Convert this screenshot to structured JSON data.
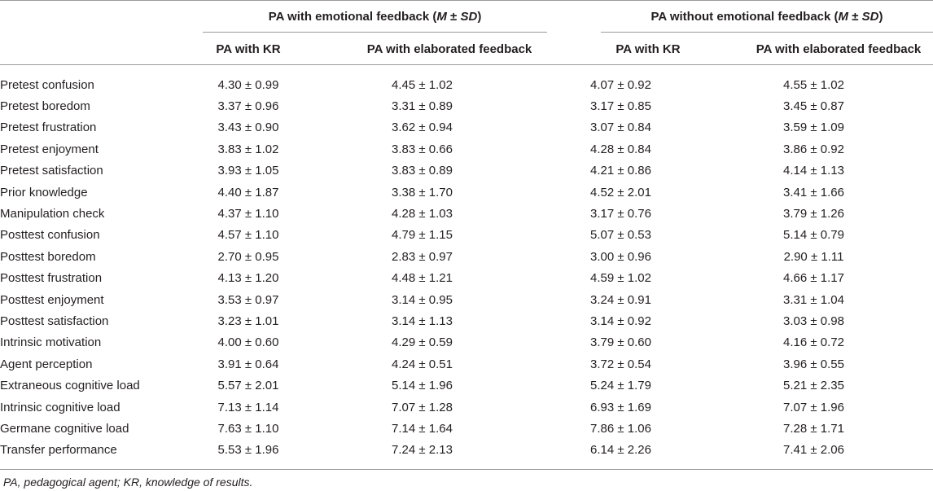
{
  "header": {
    "group1": {
      "pre": "PA with emotional feedback (",
      "em": "M",
      "mid": " ± ",
      "em2": "SD",
      "post": ")"
    },
    "group2": {
      "pre": "PA without emotional feedback (",
      "em": "M",
      "mid": " ± ",
      "em2": "SD",
      "post": ")"
    },
    "columns": [
      "PA with KR",
      "PA with elaborated feedback",
      "PA with KR",
      "PA with elaborated feedback"
    ]
  },
  "rows": [
    {
      "label": "Pretest confusion",
      "v": [
        "4.30 ± 0.99",
        "4.45 ± 1.02",
        "4.07 ± 0.92",
        "4.55 ± 1.02"
      ]
    },
    {
      "label": "Pretest boredom",
      "v": [
        "3.37 ± 0.96",
        "3.31 ± 0.89",
        "3.17 ± 0.85",
        "3.45 ± 0.87"
      ]
    },
    {
      "label": "Pretest frustration",
      "v": [
        "3.43 ± 0.90",
        "3.62 ± 0.94",
        "3.07 ± 0.84",
        "3.59 ± 1.09"
      ]
    },
    {
      "label": "Pretest enjoyment",
      "v": [
        "3.83 ± 1.02",
        "3.83 ± 0.66",
        "4.28 ± 0.84",
        "3.86 ± 0.92"
      ]
    },
    {
      "label": "Pretest satisfaction",
      "v": [
        "3.93 ± 1.05",
        "3.83 ± 0.89",
        "4.21 ± 0.86",
        "4.14 ± 1.13"
      ]
    },
    {
      "label": "Prior knowledge",
      "v": [
        "4.40 ± 1.87",
        "3.38 ± 1.70",
        "4.52 ± 2.01",
        "3.41 ± 1.66"
      ]
    },
    {
      "label": "Manipulation check",
      "v": [
        "4.37 ± 1.10",
        "4.28 ± 1.03",
        "3.17 ± 0.76",
        "3.79 ± 1.26"
      ]
    },
    {
      "label": "Posttest confusion",
      "v": [
        "4.57 ± 1.10",
        "4.79 ± 1.15",
        "5.07 ± 0.53",
        "5.14 ± 0.79"
      ]
    },
    {
      "label": "Posttest boredom",
      "v": [
        "2.70 ± 0.95",
        "2.83 ± 0.97",
        "3.00 ± 0.96",
        "2.90 ± 1.11"
      ]
    },
    {
      "label": "Posttest frustration",
      "v": [
        "4.13 ± 1.20",
        "4.48 ± 1.21",
        "4.59 ± 1.02",
        "4.66 ± 1.17"
      ]
    },
    {
      "label": "Posttest enjoyment",
      "v": [
        "3.53 ± 0.97",
        "3.14 ± 0.95",
        "3.24 ± 0.91",
        "3.31 ± 1.04"
      ]
    },
    {
      "label": "Posttest satisfaction",
      "v": [
        "3.23 ± 1.01",
        "3.14 ± 1.13",
        "3.14 ± 0.92",
        "3.03 ± 0.98"
      ]
    },
    {
      "label": "Intrinsic motivation",
      "v": [
        "4.00 ± 0.60",
        "4.29 ± 0.59",
        "3.79 ± 0.60",
        "4.16 ± 0.72"
      ]
    },
    {
      "label": "Agent perception",
      "v": [
        "3.91 ± 0.64",
        "4.24 ± 0.51",
        "3.72 ± 0.54",
        "3.96 ± 0.55"
      ]
    },
    {
      "label": "Extraneous cognitive load",
      "v": [
        "5.57 ± 2.01",
        "5.14 ± 1.96",
        "5.24 ± 1.79",
        "5.21 ± 2.35"
      ]
    },
    {
      "label": "Intrinsic cognitive load",
      "v": [
        "7.13 ± 1.14",
        "7.07 ± 1.28",
        "6.93 ± 1.69",
        "7.07 ± 1.96"
      ]
    },
    {
      "label": "Germane cognitive load",
      "v": [
        "7.63 ± 1.10",
        "7.14 ± 1.64",
        "7.86 ± 1.06",
        "7.28 ± 1.71"
      ]
    },
    {
      "label": "Transfer performance",
      "v": [
        "5.53 ± 1.96",
        "7.24 ± 2.13",
        "6.14 ± 2.26",
        "7.41 ± 2.06"
      ]
    }
  ],
  "footnote": "PA, pedagogical agent; KR, knowledge of results."
}
